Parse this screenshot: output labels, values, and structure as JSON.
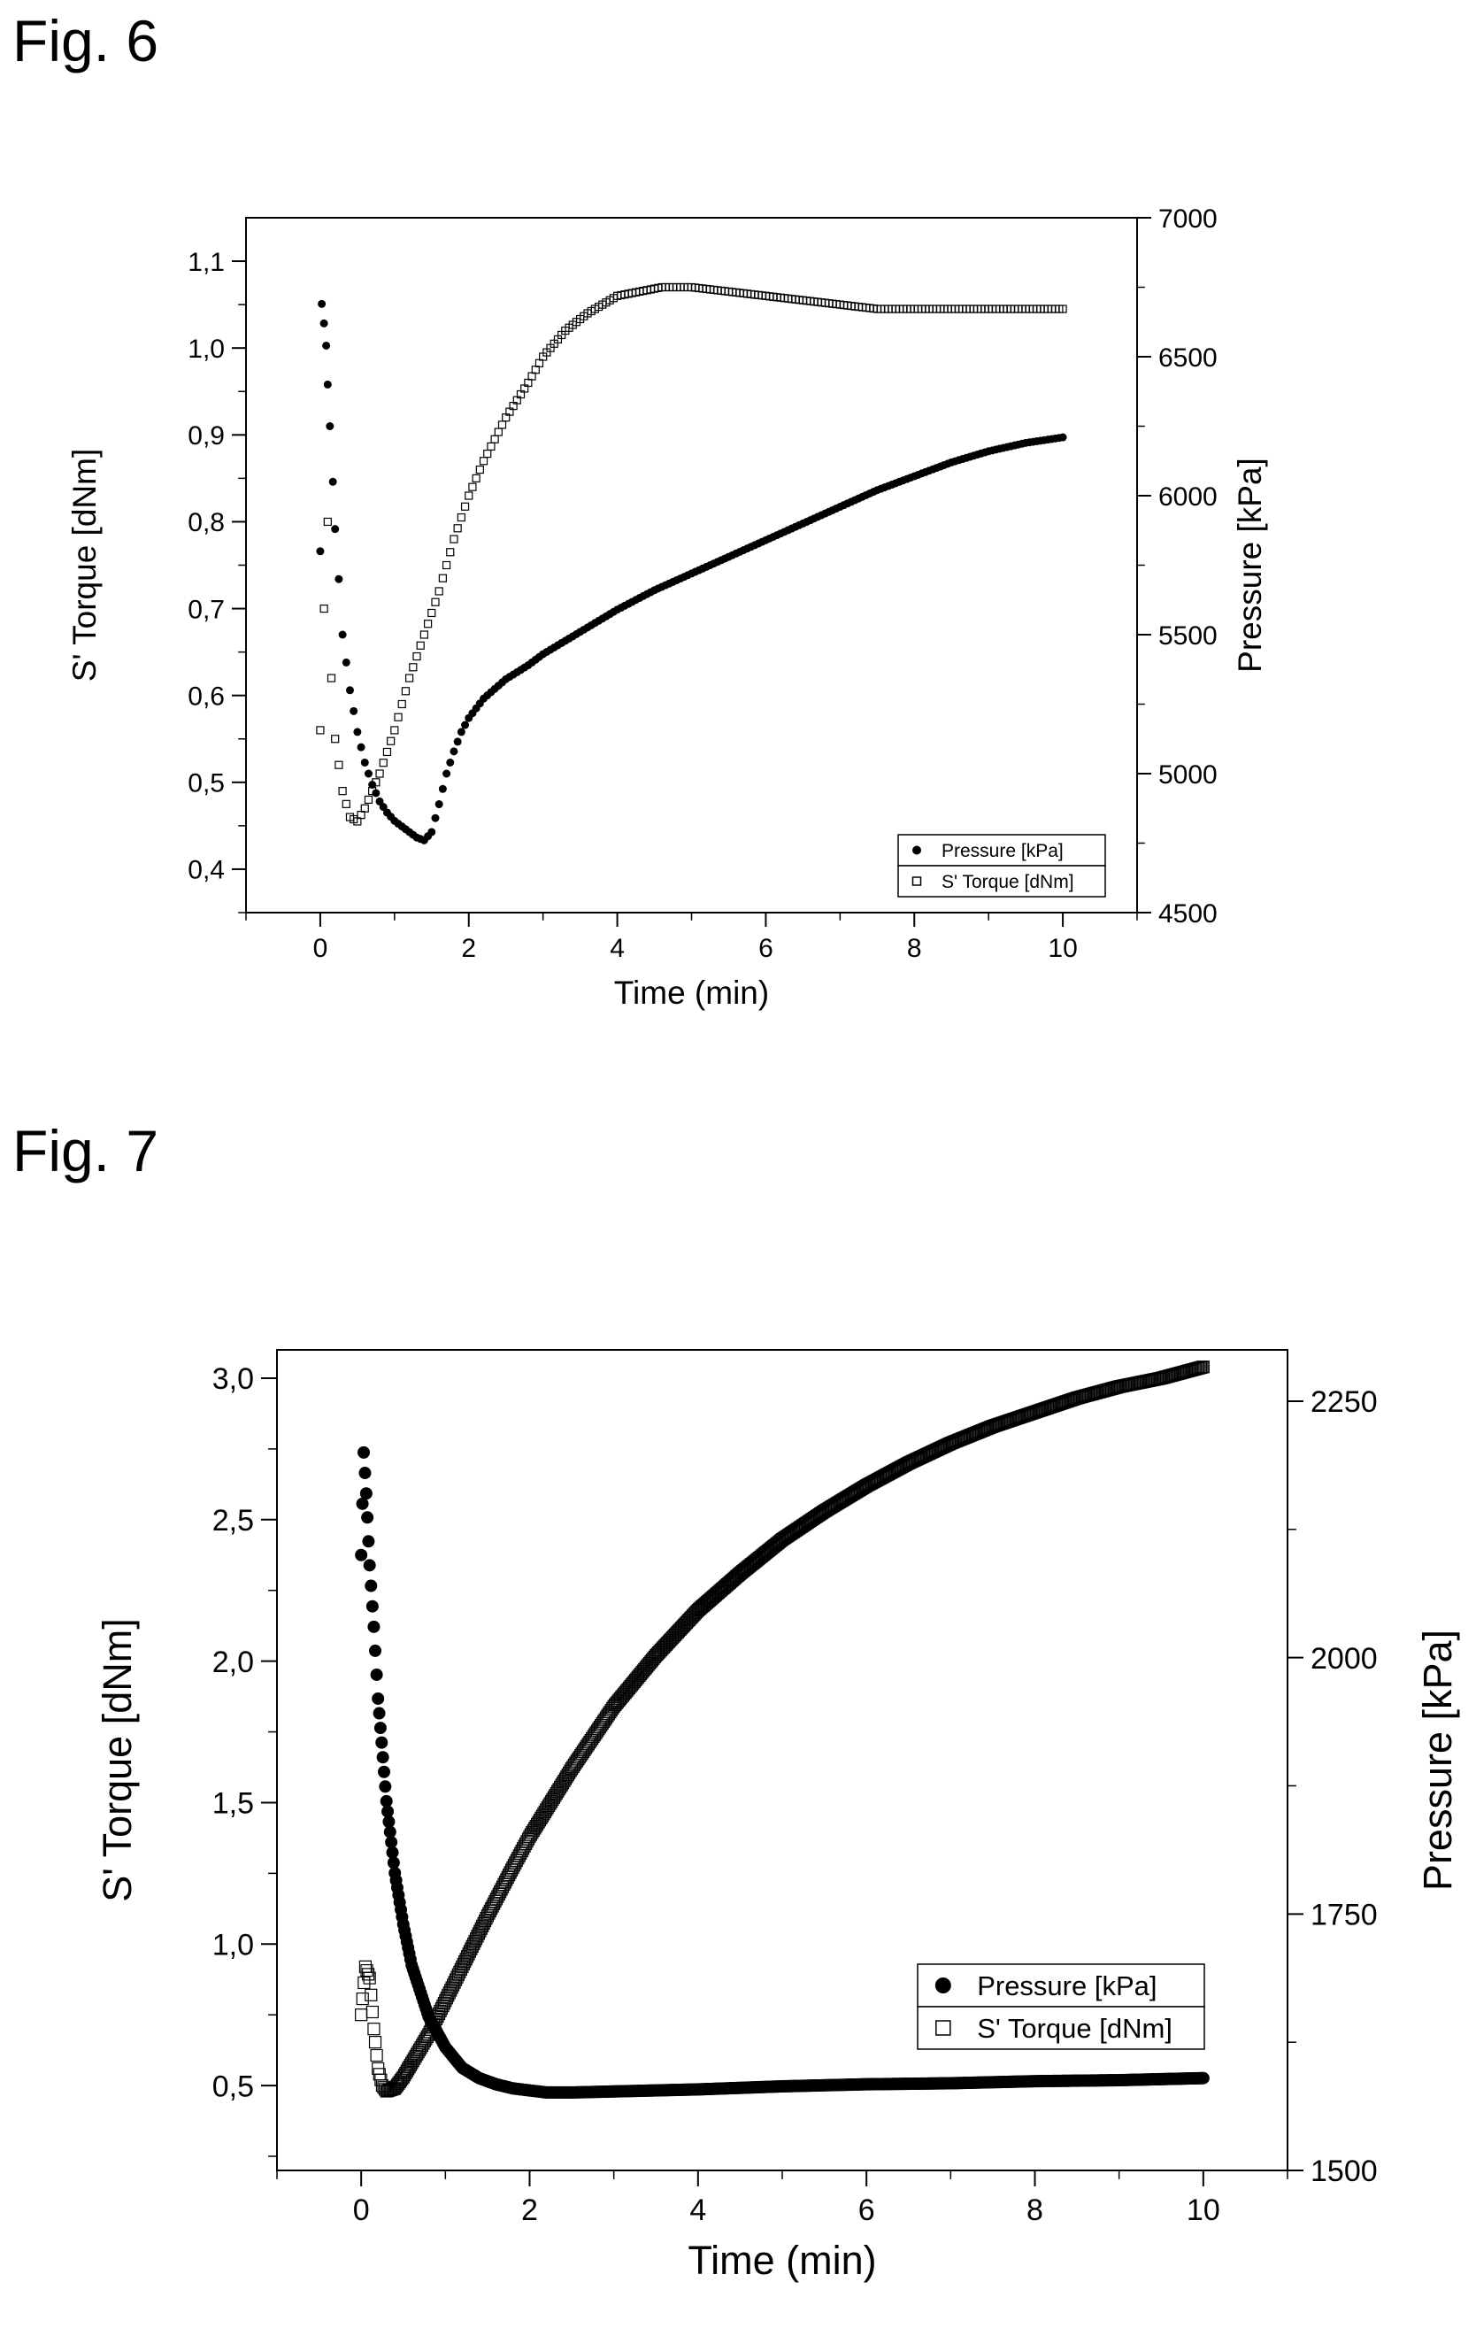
{
  "figures": {
    "fig6": {
      "label": "Fig. 6"
    },
    "fig7": {
      "label": "Fig. 7"
    }
  },
  "chart_data": [
    {
      "type": "scatter",
      "figure": "Fig. 6",
      "xlabel": "Time (min)",
      "ylabel_left": "S' Torque [dNm]",
      "ylabel_right": "Pressure [kPa]",
      "xlim": [
        -1,
        11
      ],
      "ylim_left": [
        0.35,
        1.15
      ],
      "ylim_right": [
        4500,
        7000
      ],
      "xticks": [
        0,
        2,
        4,
        6,
        8,
        10
      ],
      "xtick_labels": [
        "0",
        "2",
        "4",
        "6",
        "8",
        "10"
      ],
      "yticks_left": [
        0.4,
        0.5,
        0.6,
        0.7,
        0.8,
        0.9,
        1.0,
        1.1
      ],
      "ytick_labels_left": [
        "0,4",
        "0,5",
        "0,6",
        "0,7",
        "0,8",
        "0,9",
        "1,0",
        "1,1"
      ],
      "yticks_right": [
        4500,
        5000,
        5500,
        6000,
        6500,
        7000
      ],
      "ytick_labels_right": [
        "4500",
        "5000",
        "5500",
        "6000",
        "6500",
        "7000"
      ],
      "legend_position": "bottom-right",
      "series": [
        {
          "name": "Pressure [kPa]",
          "axis": "right",
          "marker": "filled-circle",
          "x": [
            0.0,
            0.02,
            0.05,
            0.08,
            0.1,
            0.13,
            0.17,
            0.2,
            0.25,
            0.3,
            0.4,
            0.5,
            0.6,
            0.7,
            0.8,
            0.9,
            1.0,
            1.1,
            1.2,
            1.3,
            1.4,
            1.5,
            1.6,
            1.7,
            1.8,
            1.9,
            2.0,
            2.2,
            2.5,
            2.8,
            3.0,
            3.5,
            4.0,
            4.5,
            5.0,
            5.5,
            6.0,
            6.5,
            7.0,
            7.5,
            8.0,
            8.5,
            9.0,
            9.5,
            10.0
          ],
          "y": [
            5800,
            6690,
            6620,
            6540,
            6400,
            6250,
            6050,
            5880,
            5700,
            5500,
            5300,
            5150,
            5040,
            4960,
            4900,
            4860,
            4830,
            4810,
            4790,
            4770,
            4760,
            4790,
            4890,
            5000,
            5080,
            5150,
            5200,
            5270,
            5340,
            5390,
            5430,
            5510,
            5590,
            5660,
            5720,
            5780,
            5840,
            5900,
            5960,
            6020,
            6070,
            6120,
            6160,
            6190,
            6210
          ]
        },
        {
          "name": "S' Torque [dNm]",
          "axis": "left",
          "marker": "open-square",
          "x": [
            0.0,
            0.05,
            0.1,
            0.15,
            0.2,
            0.3,
            0.4,
            0.5,
            0.6,
            0.7,
            0.8,
            1.0,
            1.2,
            1.4,
            1.6,
            1.8,
            2.0,
            2.2,
            2.5,
            2.8,
            3.0,
            3.3,
            3.6,
            4.0,
            4.3,
            4.6,
            5.0,
            5.5,
            6.0,
            6.5,
            7.0,
            7.5,
            8.0,
            8.5,
            9.0,
            9.5,
            10.0
          ],
          "y": [
            0.56,
            0.7,
            0.8,
            0.62,
            0.55,
            0.49,
            0.46,
            0.455,
            0.47,
            0.49,
            0.51,
            0.56,
            0.62,
            0.67,
            0.72,
            0.78,
            0.83,
            0.87,
            0.92,
            0.96,
            0.99,
            1.02,
            1.04,
            1.06,
            1.065,
            1.07,
            1.07,
            1.065,
            1.06,
            1.055,
            1.05,
            1.045,
            1.045,
            1.045,
            1.045,
            1.045,
            1.045
          ]
        }
      ]
    },
    {
      "type": "scatter",
      "figure": "Fig. 7",
      "xlabel": "Time (min)",
      "ylabel_left": "S' Torque [dNm]",
      "ylabel_right": "Pressure [kPa]",
      "xlim": [
        -1,
        11
      ],
      "ylim_left": [
        0.2,
        3.1
      ],
      "ylim_right": [
        1500,
        2300
      ],
      "xticks": [
        0,
        2,
        4,
        6,
        8,
        10
      ],
      "xtick_labels": [
        "0",
        "2",
        "4",
        "6",
        "8",
        "10"
      ],
      "yticks_left": [
        0.5,
        1.0,
        1.5,
        2.0,
        2.5,
        3.0
      ],
      "ytick_labels_left": [
        "0,5",
        "1,0",
        "1,5",
        "2,0",
        "2,5",
        "3,0"
      ],
      "yticks_right": [
        1500,
        1750,
        2000,
        2250
      ],
      "ytick_labels_right": [
        "1500",
        "1750",
        "2000",
        "2250"
      ],
      "legend_position": "bottom-right",
      "series": [
        {
          "name": "Pressure [kPa]",
          "axis": "right",
          "marker": "filled-circle",
          "x": [
            0.0,
            0.03,
            0.06,
            0.1,
            0.15,
            0.2,
            0.3,
            0.4,
            0.5,
            0.6,
            0.8,
            1.0,
            1.2,
            1.4,
            1.6,
            1.8,
            2.0,
            2.2,
            2.5,
            3.0,
            4.0,
            5.0,
            6.0,
            7.0,
            8.0,
            9.0,
            10.0
          ],
          "y": [
            2100,
            2200,
            2160,
            2090,
            2030,
            1960,
            1860,
            1790,
            1740,
            1700,
            1650,
            1620,
            1600,
            1590,
            1584,
            1580,
            1578,
            1576,
            1576,
            1577,
            1579,
            1582,
            1584,
            1585,
            1587,
            1588,
            1590
          ]
        },
        {
          "name": "S' Torque [dNm]",
          "axis": "left",
          "marker": "open-square",
          "x": [
            0.0,
            0.05,
            0.1,
            0.15,
            0.2,
            0.25,
            0.3,
            0.4,
            0.5,
            0.6,
            0.8,
            1.0,
            1.2,
            1.5,
            1.8,
            2.0,
            2.5,
            3.0,
            3.5,
            4.0,
            4.5,
            5.0,
            5.5,
            6.0,
            6.5,
            7.0,
            7.5,
            8.0,
            8.5,
            9.0,
            9.5,
            10.0
          ],
          "y": [
            0.75,
            0.92,
            0.88,
            0.7,
            0.56,
            0.5,
            0.48,
            0.49,
            0.53,
            0.58,
            0.68,
            0.8,
            0.92,
            1.1,
            1.27,
            1.38,
            1.62,
            1.84,
            2.02,
            2.18,
            2.31,
            2.43,
            2.53,
            2.62,
            2.7,
            2.77,
            2.83,
            2.88,
            2.93,
            2.97,
            3.0,
            3.04
          ]
        }
      ]
    }
  ]
}
